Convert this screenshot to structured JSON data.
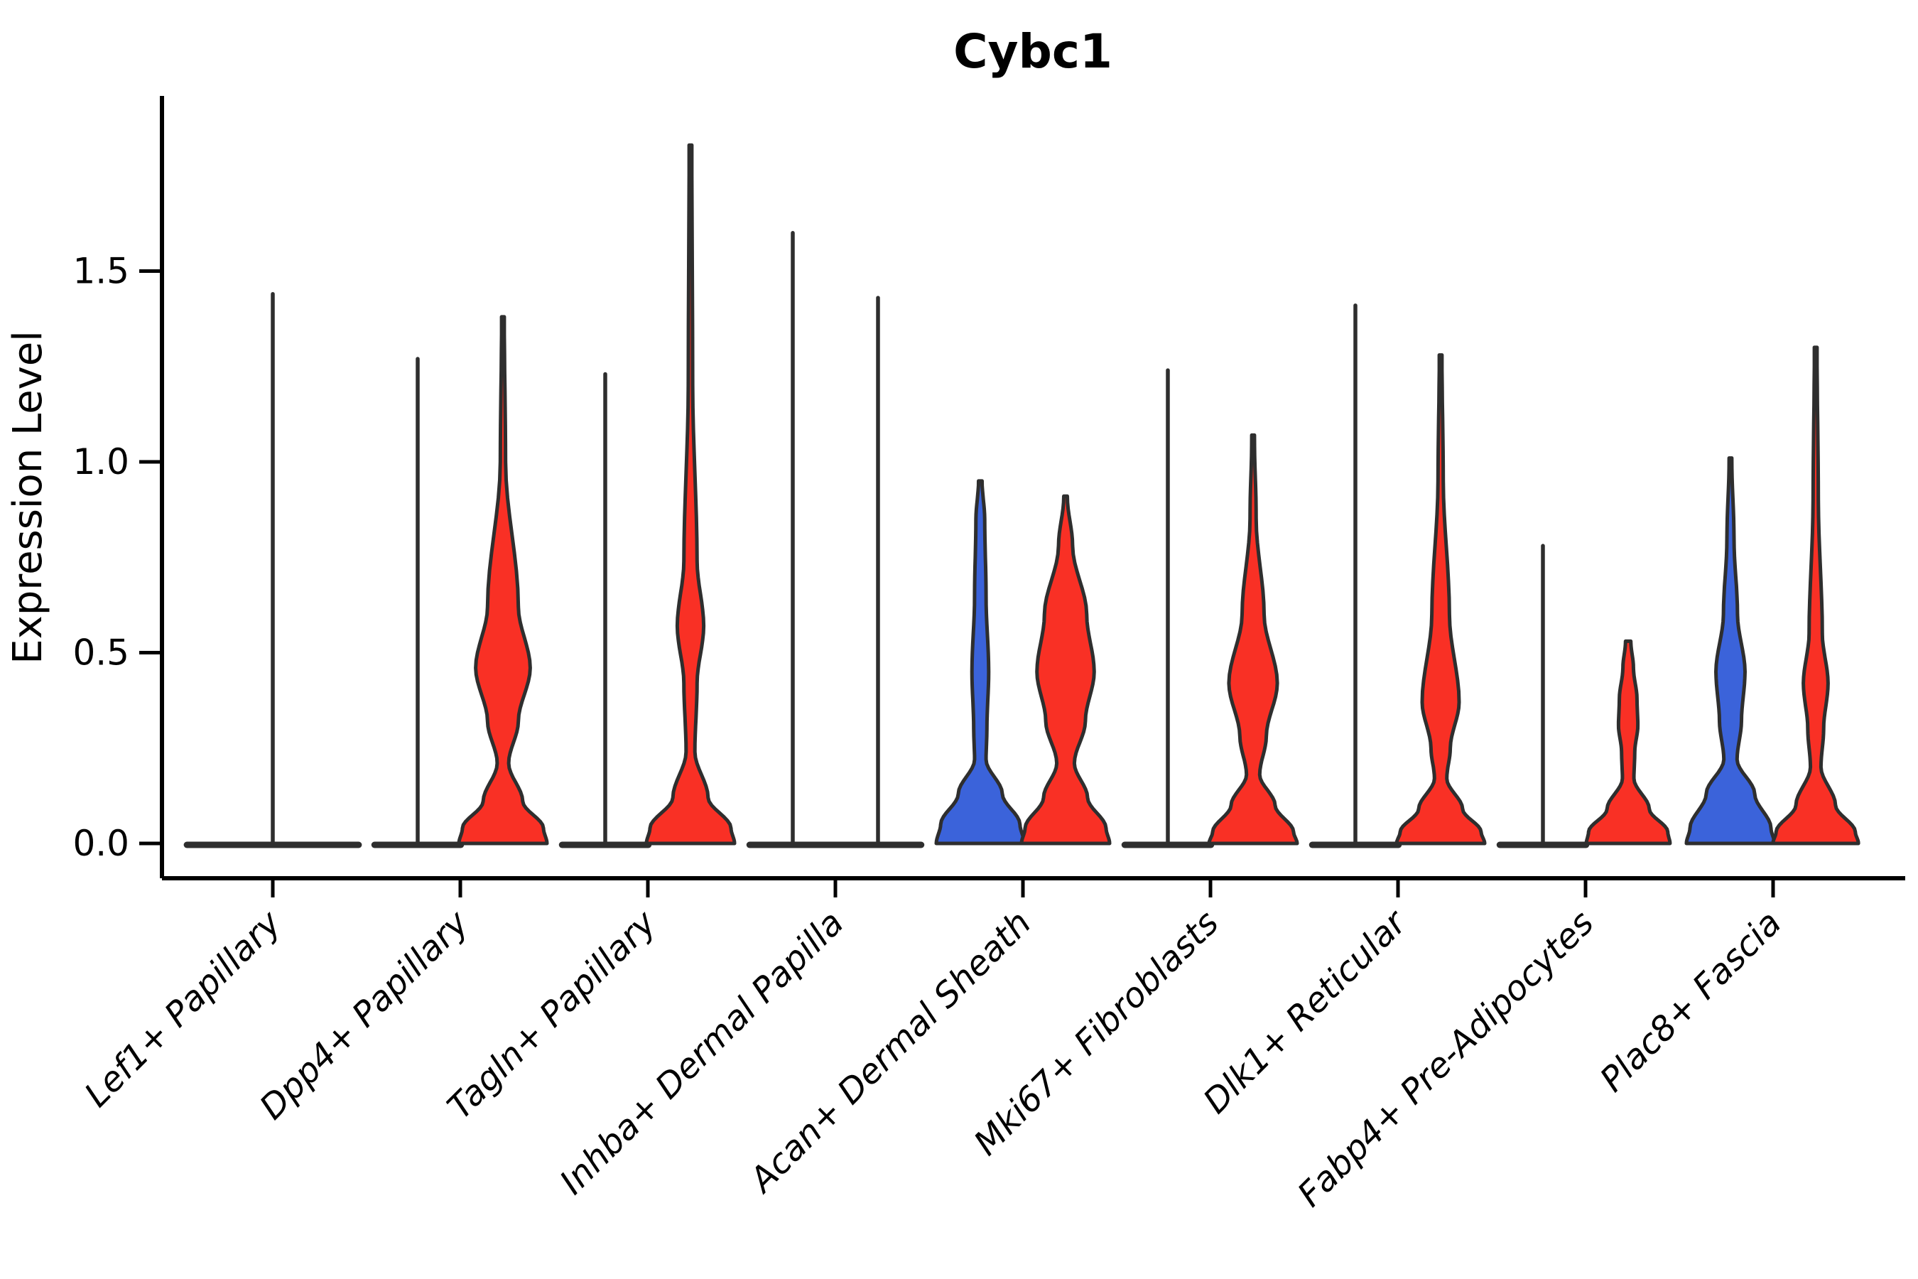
{
  "title": "Cybc1",
  "chart_data": {
    "type": "violin",
    "title": "Cybc1",
    "xlabel": "",
    "ylabel": "Expression Level",
    "ylim": [
      0,
      1.96
    ],
    "yticks": [
      0.0,
      0.5,
      1.0,
      1.5
    ],
    "ytick_labels": [
      "0.0",
      "0.5",
      "1.0",
      "1.5"
    ],
    "grid": false,
    "legend": "none",
    "categories": [
      "Lef1+ Papillary",
      "Dpp4+ Papillary",
      "Tagln+ Papillary",
      "Inhba+ Dermal Papilla",
      "Acan+ Dermal Sheath",
      "Mki67+ Fibroblasts",
      "Dlk1+ Reticular",
      "Fabp4+ Pre-Adipocytes",
      "Plac8+ Fascia"
    ],
    "palette": {
      "blue": "#3B63DA",
      "red": "#F93025",
      "edge": "#2E2E2E"
    },
    "series": [
      {
        "name": "left violin (blue group)",
        "color": "#3B63DA",
        "max_expression": [
          1.44,
          1.27,
          1.23,
          1.6,
          0.95,
          1.24,
          1.41,
          0.78,
          1.01
        ]
      },
      {
        "name": "right violin (red group)",
        "color": "#F93025",
        "max_expression": [
          null,
          1.38,
          1.83,
          1.43,
          0.91,
          1.07,
          1.28,
          0.53,
          1.3
        ]
      }
    ],
    "notes": "Expression is near 0 for most cells in every cluster (wide flat base at 0). Lef1+ Papillary has a single full-width violin; all other clusters have a left/right violin pair. Violins with visible colored bodies: blue at Acan+ Dermal Sheath and Plac8+ Fascia; red at Dpp4+, Tagln+, Acan+, Mki67+, Dlk1+, Fabp4+ and Plac8+ clusters.",
    "violins": [
      {
        "category_index": 0,
        "category": "Lef1+ Papillary",
        "side": "center",
        "group": "blue",
        "type": "spike",
        "max": 1.44,
        "base_halfwidth": 1.95
      },
      {
        "category_index": 1,
        "category": "Dpp4+ Papillary",
        "side": "left",
        "group": "blue",
        "type": "spike",
        "max": 1.27,
        "base_halfwidth": 0.98
      },
      {
        "category_index": 1,
        "category": "Dpp4+ Papillary",
        "side": "right",
        "group": "red",
        "type": "shaped",
        "max": 1.38,
        "profile": [
          [
            1.38,
            0.03
          ],
          [
            1.0,
            0.06
          ],
          [
            0.62,
            0.35
          ],
          [
            0.46,
            0.62
          ],
          [
            0.32,
            0.35
          ],
          [
            0.21,
            0.13
          ],
          [
            0.11,
            0.45
          ],
          [
            0.04,
            0.92
          ],
          [
            0.0,
            1.0
          ]
        ]
      },
      {
        "category_index": 2,
        "category": "Tagln+ Papillary",
        "side": "left",
        "group": "blue",
        "type": "spike",
        "max": 1.23,
        "base_halfwidth": 0.98
      },
      {
        "category_index": 2,
        "category": "Tagln+ Papillary",
        "side": "right",
        "group": "red",
        "type": "shaped",
        "max": 1.83,
        "profile": [
          [
            1.83,
            0.03
          ],
          [
            1.2,
            0.05
          ],
          [
            0.74,
            0.15
          ],
          [
            0.57,
            0.3
          ],
          [
            0.42,
            0.15
          ],
          [
            0.24,
            0.1
          ],
          [
            0.12,
            0.4
          ],
          [
            0.04,
            0.92
          ],
          [
            0.0,
            1.0
          ]
        ]
      },
      {
        "category_index": 3,
        "category": "Inhba+ Dermal Papilla",
        "side": "left",
        "group": "blue",
        "type": "spike",
        "max": 1.6,
        "base_halfwidth": 0.98
      },
      {
        "category_index": 3,
        "category": "Inhba+ Dermal Papilla",
        "side": "right",
        "group": "red",
        "type": "spike",
        "max": 1.43,
        "base_halfwidth": 0.98
      },
      {
        "category_index": 4,
        "category": "Acan+ Dermal Sheath",
        "side": "left",
        "group": "blue",
        "type": "shaped",
        "max": 0.95,
        "profile": [
          [
            0.95,
            0.04
          ],
          [
            0.85,
            0.1
          ],
          [
            0.65,
            0.13
          ],
          [
            0.45,
            0.19
          ],
          [
            0.3,
            0.15
          ],
          [
            0.22,
            0.13
          ],
          [
            0.13,
            0.5
          ],
          [
            0.05,
            0.9
          ],
          [
            0.0,
            1.0
          ]
        ]
      },
      {
        "category_index": 4,
        "category": "Acan+ Dermal Sheath",
        "side": "right",
        "group": "red",
        "type": "shaped",
        "max": 0.91,
        "profile": [
          [
            0.91,
            0.04
          ],
          [
            0.78,
            0.16
          ],
          [
            0.6,
            0.48
          ],
          [
            0.45,
            0.65
          ],
          [
            0.32,
            0.45
          ],
          [
            0.21,
            0.2
          ],
          [
            0.12,
            0.5
          ],
          [
            0.04,
            0.92
          ],
          [
            0.0,
            1.0
          ]
        ]
      },
      {
        "category_index": 5,
        "category": "Mki67+ Fibroblasts",
        "side": "left",
        "group": "blue",
        "type": "spike",
        "max": 1.24,
        "base_halfwidth": 0.98
      },
      {
        "category_index": 5,
        "category": "Mki67+ Fibroblasts",
        "side": "right",
        "group": "red",
        "type": "shaped",
        "max": 1.07,
        "profile": [
          [
            1.07,
            0.03
          ],
          [
            0.85,
            0.07
          ],
          [
            0.6,
            0.25
          ],
          [
            0.42,
            0.55
          ],
          [
            0.28,
            0.3
          ],
          [
            0.18,
            0.15
          ],
          [
            0.1,
            0.5
          ],
          [
            0.03,
            0.92
          ],
          [
            0.0,
            1.0
          ]
        ]
      },
      {
        "category_index": 6,
        "category": "Dlk1+ Reticular",
        "side": "left",
        "group": "blue",
        "type": "spike",
        "max": 1.41,
        "base_halfwidth": 0.98
      },
      {
        "category_index": 6,
        "category": "Dlk1+ Reticular",
        "side": "right",
        "group": "red",
        "type": "shaped",
        "max": 1.28,
        "profile": [
          [
            1.28,
            0.03
          ],
          [
            0.95,
            0.06
          ],
          [
            0.6,
            0.2
          ],
          [
            0.37,
            0.42
          ],
          [
            0.25,
            0.22
          ],
          [
            0.17,
            0.14
          ],
          [
            0.09,
            0.5
          ],
          [
            0.03,
            0.92
          ],
          [
            0.0,
            1.0
          ]
        ]
      },
      {
        "category_index": 7,
        "category": "Fabp4+ Pre-Adipocytes",
        "side": "left",
        "group": "blue",
        "type": "spike",
        "max": 0.78,
        "base_halfwidth": 0.98
      },
      {
        "category_index": 7,
        "category": "Fabp4+ Pre-Adipocytes",
        "side": "right",
        "group": "red",
        "type": "shaped",
        "max": 0.53,
        "profile": [
          [
            0.53,
            0.06
          ],
          [
            0.46,
            0.12
          ],
          [
            0.38,
            0.2
          ],
          [
            0.31,
            0.22
          ],
          [
            0.24,
            0.15
          ],
          [
            0.17,
            0.13
          ],
          [
            0.09,
            0.48
          ],
          [
            0.03,
            0.9
          ],
          [
            0.0,
            0.95
          ]
        ]
      },
      {
        "category_index": 8,
        "category": "Plac8+ Fascia",
        "side": "left",
        "group": "blue",
        "type": "shaped",
        "max": 1.01,
        "profile": [
          [
            1.01,
            0.03
          ],
          [
            0.8,
            0.08
          ],
          [
            0.6,
            0.16
          ],
          [
            0.45,
            0.33
          ],
          [
            0.32,
            0.25
          ],
          [
            0.22,
            0.15
          ],
          [
            0.13,
            0.55
          ],
          [
            0.04,
            0.92
          ],
          [
            0.0,
            1.0
          ]
        ]
      },
      {
        "category_index": 8,
        "category": "Plac8+ Fascia",
        "side": "right",
        "group": "red",
        "type": "shaped",
        "max": 1.3,
        "profile": [
          [
            1.3,
            0.03
          ],
          [
            0.9,
            0.06
          ],
          [
            0.55,
            0.15
          ],
          [
            0.42,
            0.28
          ],
          [
            0.3,
            0.18
          ],
          [
            0.2,
            0.12
          ],
          [
            0.1,
            0.45
          ],
          [
            0.03,
            0.9
          ],
          [
            0.0,
            0.97
          ]
        ]
      }
    ]
  }
}
